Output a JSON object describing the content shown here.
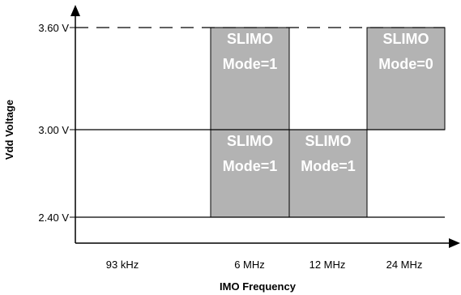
{
  "y_axis": {
    "title": "Vdd Voltage",
    "levels": [
      {
        "label": "3.60 V",
        "value": 3.6
      },
      {
        "label": "3.00 V",
        "value": 3.0
      },
      {
        "label": "2.40 V",
        "value": 2.4
      }
    ]
  },
  "x_axis": {
    "title": "IMO Frequency",
    "labels": [
      "93 kHz",
      "6  MHz",
      "12 MHz",
      "24  MHz"
    ]
  },
  "regions": [
    {
      "line1": "SLIMO",
      "line2": "Mode=1",
      "frequency_label": "6  MHz",
      "v_low": 3.0,
      "v_high": 3.6
    },
    {
      "line1": "SLIMO",
      "line2": "Mode=1",
      "frequency_label": "6  MHz",
      "v_low": 2.4,
      "v_high": 3.0
    },
    {
      "line1": "SLIMO",
      "line2": "Mode=1",
      "frequency_label": "12 MHz",
      "v_low": 2.4,
      "v_high": 3.0
    },
    {
      "line1": "SLIMO",
      "line2": "Mode=0",
      "frequency_label": "24  MHz",
      "v_low": 3.0,
      "v_high": 3.6
    }
  ],
  "colors": {
    "region_fill": "#b3b3b3",
    "line": "#000000",
    "text_on_region": "#ffffff"
  }
}
